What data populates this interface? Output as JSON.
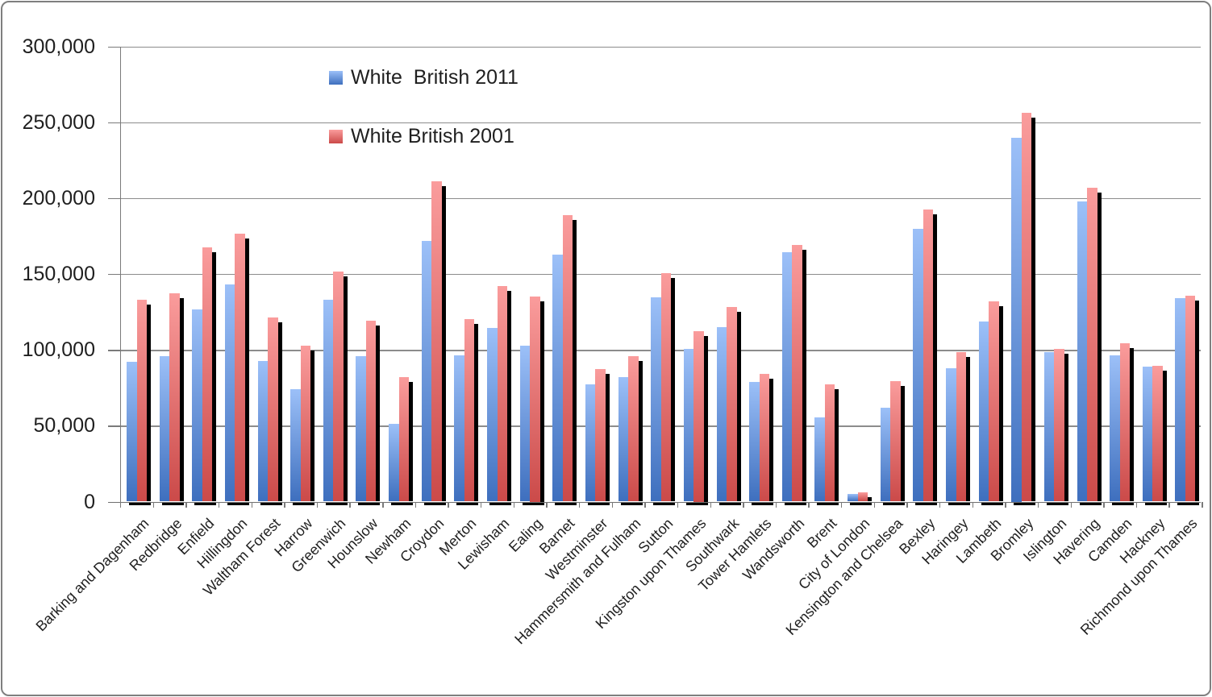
{
  "chart_data": {
    "type": "bar",
    "title": "",
    "xlabel": "",
    "ylabel": "",
    "ylim": [
      0,
      300000
    ],
    "grid": true,
    "legend_position": "inside-top-left",
    "categories": [
      "Barking and Dagenham",
      "Redbridge",
      "Enfield",
      "Hillingdon",
      "Waltham Forest",
      "Harrow",
      "Greenwich",
      "Hounslow",
      "Newham",
      "Croydon",
      "Merton",
      "Lewisham",
      "Ealing",
      "Barnet",
      "Westminster",
      "Hammersmith and Fulham",
      "Sutton",
      "Kingston upon Thames",
      "Southwark",
      "Tower Hamlets",
      "Wandsworth",
      "Brent",
      "City of London",
      "Kensington and Chelsea",
      "Bexley",
      "Haringey",
      "Lambeth",
      "Bromley",
      "Islington",
      "Havering",
      "Camden",
      "Hackney",
      "Richmond upon Thames"
    ],
    "series": [
      {
        "name": "White  British 2011",
        "color_light": "#9cc0f8",
        "color_dark": "#3e6fbe",
        "values": [
          92000,
          96000,
          126500,
          143000,
          92500,
          74000,
          133000,
          96000,
          51500,
          172000,
          96500,
          114500,
          103000,
          162500,
          77000,
          82000,
          134500,
          100500,
          115000,
          79000,
          164500,
          55500,
          5000,
          62000,
          179500,
          88000,
          118500,
          240000,
          98500,
          198000,
          96500,
          89000,
          134000
        ]
      },
      {
        "name": "White British 2001",
        "color_light": "#fa9c9c",
        "color_dark": "#cb4a49",
        "values": [
          133000,
          137000,
          167500,
          176500,
          121500,
          103000,
          151500,
          119000,
          82000,
          211000,
          120500,
          142000,
          135000,
          188500,
          87500,
          96000,
          150500,
          112500,
          128000,
          84000,
          169000,
          77000,
          6000,
          79500,
          192500,
          98500,
          132000,
          256000,
          100500,
          207000,
          104500,
          89500,
          135500
        ]
      }
    ]
  },
  "y_axis": {
    "tick_labels": [
      "300,000",
      "250,000",
      "200,000",
      "150,000",
      "100,000",
      "50,000",
      "0"
    ],
    "tick_values": [
      300000,
      250000,
      200000,
      150000,
      100000,
      50000,
      0
    ]
  },
  "legend": {
    "item_2011": "White  British 2011",
    "item_2001": "White British 2001"
  },
  "colors": {
    "series_2011": "#4f81bd",
    "series_2001": "#c0504d",
    "shadow": "#000000",
    "gridline": "#8c8c8c",
    "axis": "#6f6f6f",
    "frame_border": "#7f7f7f",
    "background": "#ffffff",
    "text": "#1f1f1f"
  }
}
